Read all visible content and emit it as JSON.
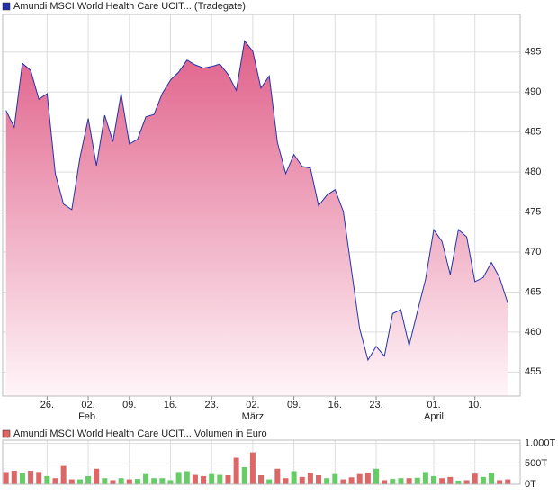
{
  "chart_data": [
    {
      "type": "area",
      "title": "Amundi MSCI World Health Care UCIT... (Tradegate)",
      "x": [
        5,
        6,
        7,
        8,
        9,
        10,
        11,
        12,
        13,
        14,
        15,
        16,
        17,
        18,
        19,
        20,
        21,
        22,
        23,
        24,
        25,
        26,
        27,
        28,
        29,
        30,
        31,
        32,
        33,
        34,
        35,
        36,
        37,
        38,
        39,
        40,
        41,
        42,
        43,
        44,
        45,
        46,
        47,
        48,
        49,
        50,
        51,
        52,
        53,
        54,
        55,
        56,
        57,
        58,
        59,
        60,
        61,
        62,
        63,
        64,
        65,
        66
      ],
      "series": [
        {
          "name": "Amundi MSCI World Health Care UCIT... (Tradegate)",
          "color": "#2233aa",
          "values": [
            487.7,
            485.6,
            493.6,
            492.7,
            489.1,
            489.8,
            479.8,
            476.0,
            475.3,
            481.8,
            486.7,
            480.8,
            487.1,
            483.8,
            489.8,
            483.5,
            484.1,
            486.9,
            487.2,
            489.8,
            491.5,
            492.5,
            494.0,
            493.4,
            493.0,
            493.2,
            493.5,
            492.2,
            490.2,
            496.4,
            495.1,
            490.5,
            492.0,
            483.7,
            479.8,
            482.2,
            480.7,
            480.5,
            475.8,
            477.1,
            477.8,
            475.1,
            467.7,
            460.4,
            456.5,
            458.2,
            457.0,
            462.3,
            462.8,
            458.3,
            462.5,
            466.6,
            472.8,
            471.3,
            467.2,
            472.8,
            471.9,
            466.3,
            466.8,
            468.7,
            466.8,
            463.6
          ]
        }
      ],
      "fill_top": "#e0608a",
      "fill_bottom": "#fff5f8",
      "xlim": [
        4.6,
        67.5
      ],
      "xticks": [
        {
          "value": 10,
          "label": "26."
        },
        {
          "value": 15,
          "label": "02."
        },
        {
          "value": 20,
          "label": "09."
        },
        {
          "value": 25,
          "label": "16."
        },
        {
          "value": 30,
          "label": "23."
        },
        {
          "value": 35,
          "label": "02."
        },
        {
          "value": 40,
          "label": "09."
        },
        {
          "value": 45,
          "label": "16."
        },
        {
          "value": 50,
          "label": "23."
        },
        {
          "value": 57,
          "label": "01."
        },
        {
          "value": 62,
          "label": "10."
        }
      ],
      "month_labels": [
        {
          "value": 15,
          "label": "Feb."
        },
        {
          "value": 35,
          "label": "März"
        },
        {
          "value": 57,
          "label": "April"
        }
      ],
      "ylim": [
        452,
        499.7
      ],
      "yticks": [
        455,
        460,
        465,
        470,
        475,
        480,
        485,
        490,
        495
      ],
      "grid": true
    },
    {
      "type": "bar",
      "title": "Amundi MSCI World Health Care UCIT... Volumen in Euro",
      "x": [
        5,
        6,
        7,
        8,
        9,
        10,
        11,
        12,
        13,
        14,
        15,
        16,
        17,
        18,
        19,
        20,
        21,
        22,
        23,
        24,
        25,
        26,
        27,
        28,
        29,
        30,
        31,
        32,
        33,
        34,
        35,
        36,
        37,
        38,
        39,
        40,
        41,
        42,
        43,
        44,
        45,
        46,
        47,
        48,
        49,
        50,
        51,
        52,
        53,
        54,
        55,
        56,
        57,
        58,
        59,
        60,
        61,
        62,
        63,
        64,
        65,
        66
      ],
      "values": [
        300,
        330,
        280,
        330,
        300,
        200,
        150,
        450,
        120,
        120,
        200,
        380,
        150,
        100,
        150,
        120,
        130,
        250,
        150,
        150,
        100,
        300,
        320,
        230,
        200,
        250,
        230,
        220,
        650,
        420,
        780,
        220,
        120,
        380,
        150,
        320,
        180,
        280,
        220,
        150,
        250,
        120,
        170,
        250,
        280,
        380,
        100,
        130,
        150,
        150,
        160,
        300,
        200,
        150,
        180,
        90,
        100,
        260,
        180,
        280,
        100,
        120
      ],
      "up_color": "#66cc66",
      "down_color": "#dd6666",
      "xlim": [
        4.6,
        67.5
      ],
      "ylim": [
        0,
        1080
      ],
      "yticks": [
        {
          "value": 0,
          "label": "0T"
        },
        {
          "value": 500,
          "label": "500T"
        },
        {
          "value": 1000,
          "label": "1.000T"
        }
      ],
      "grid": true
    }
  ]
}
